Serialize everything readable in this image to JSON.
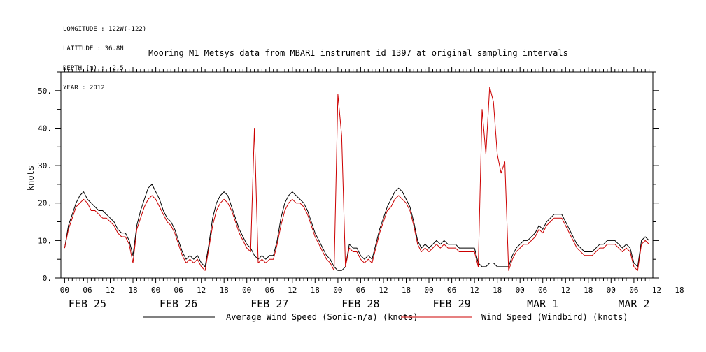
{
  "meta": {
    "longitude": "LONGITUDE : 122W(-122)",
    "latitude": "LATITUDE : 36.8N",
    "depth": "DEPTH (m) : -2.5",
    "year": "YEAR : 2012"
  },
  "chart_data": {
    "type": "line",
    "title": "Mooring M1 Metsys data from MBARI instrument id 1397 at original sampling intervals",
    "ylabel": "knots",
    "xlabel": "",
    "xlim_hours": [
      -1,
      155
    ],
    "ylim": [
      0,
      55
    ],
    "y_ticks": [
      0,
      10,
      20,
      30,
      40,
      50
    ],
    "y_tick_labels": [
      "0.",
      "10.",
      "20.",
      "30.",
      "40.",
      "50."
    ],
    "x_tick_labels": [
      "00",
      "06",
      "12",
      "18",
      "00",
      "06",
      "12",
      "18",
      "00",
      "06",
      "12",
      "18",
      "00",
      "06",
      "12",
      "18",
      "00",
      "06",
      "12",
      "18",
      "00",
      "06",
      "12",
      "18",
      "00",
      "06",
      "12",
      "18"
    ],
    "day_labels": [
      "FEB 25",
      "FEB 26",
      "FEB 27",
      "FEB 28",
      "FEB 29",
      "MAR  1",
      "MAR  2"
    ],
    "grid": false,
    "legend_position": "bottom",
    "colors": {
      "avg": "#000000",
      "windbird": "#cc0000",
      "axes": "#000000"
    },
    "series": [
      {
        "name": "Average Wind Speed (Sonic-n/a) (knots)",
        "color": "#000000",
        "x": [
          0,
          1,
          2,
          3,
          4,
          5,
          6,
          7,
          8,
          9,
          10,
          11,
          12,
          13,
          14,
          15,
          16,
          17,
          18,
          19,
          20,
          21,
          22,
          23,
          24,
          25,
          26,
          27,
          28,
          29,
          30,
          31,
          32,
          33,
          34,
          35,
          36,
          37,
          38,
          39,
          40,
          41,
          42,
          43,
          44,
          45,
          46,
          47,
          48,
          49,
          50,
          51,
          52,
          53,
          54,
          55,
          56,
          57,
          58,
          59,
          60,
          61,
          62,
          63,
          64,
          65,
          66,
          67,
          68,
          69,
          70,
          71,
          72,
          73,
          74,
          75,
          76,
          77,
          78,
          79,
          80,
          81,
          82,
          83,
          84,
          85,
          86,
          87,
          88,
          89,
          90,
          91,
          92,
          93,
          94,
          95,
          96,
          97,
          98,
          99,
          100,
          101,
          102,
          103,
          104,
          105,
          106,
          107,
          108,
          109,
          110,
          111,
          112,
          113,
          114,
          115,
          116,
          117,
          118,
          119,
          120,
          121,
          122,
          123,
          124,
          125,
          126,
          127,
          128,
          129,
          130,
          131,
          132,
          133,
          134,
          135,
          136,
          137,
          138,
          139,
          140,
          141,
          142,
          143,
          144,
          145,
          146,
          147,
          148,
          149,
          150,
          151,
          152,
          153,
          154
        ],
        "y": [
          8,
          14,
          17,
          20,
          22,
          23,
          21,
          20,
          19,
          18,
          18,
          17,
          16,
          15,
          13,
          12,
          12,
          10,
          6,
          14,
          18,
          21,
          24,
          25,
          23,
          21,
          18,
          16,
          15,
          13,
          10,
          7,
          5,
          6,
          5,
          6,
          4,
          3,
          9,
          16,
          20,
          22,
          23,
          22,
          19,
          16,
          13,
          11,
          9,
          8,
          6,
          5,
          6,
          5,
          6,
          6,
          10,
          16,
          20,
          22,
          23,
          22,
          21,
          20,
          18,
          15,
          12,
          10,
          8,
          6,
          5,
          3,
          2,
          2,
          3,
          9,
          8,
          8,
          6,
          5,
          6,
          5,
          9,
          13,
          16,
          19,
          21,
          23,
          24,
          23,
          21,
          19,
          15,
          10,
          8,
          9,
          8,
          9,
          10,
          9,
          10,
          9,
          9,
          9,
          8,
          8,
          8,
          8,
          8,
          4,
          3,
          3,
          4,
          4,
          3,
          3,
          3,
          3,
          6,
          8,
          9,
          10,
          10,
          11,
          12,
          14,
          13,
          15,
          16,
          17,
          17,
          17,
          15,
          13,
          11,
          9,
          8,
          7,
          7,
          7,
          8,
          9,
          9,
          10,
          10,
          10,
          9,
          8,
          9,
          8,
          4,
          3,
          10,
          11,
          10
        ]
      },
      {
        "name": "Wind Speed (Windbird) (knots)",
        "color": "#cc0000",
        "x": [
          0,
          1,
          2,
          3,
          4,
          5,
          6,
          7,
          8,
          9,
          10,
          11,
          12,
          13,
          14,
          15,
          16,
          17,
          18,
          19,
          20,
          21,
          22,
          23,
          24,
          25,
          26,
          27,
          28,
          29,
          30,
          31,
          32,
          33,
          34,
          35,
          36,
          37,
          38,
          39,
          40,
          41,
          42,
          43,
          44,
          45,
          46,
          47,
          48,
          49,
          50,
          51,
          52,
          53,
          54,
          55,
          56,
          57,
          58,
          59,
          60,
          61,
          62,
          63,
          64,
          65,
          66,
          67,
          68,
          69,
          70,
          71,
          72,
          73,
          74,
          75,
          76,
          77,
          78,
          79,
          80,
          81,
          82,
          83,
          84,
          85,
          86,
          87,
          88,
          89,
          90,
          91,
          92,
          93,
          94,
          95,
          96,
          97,
          98,
          99,
          100,
          101,
          102,
          103,
          104,
          105,
          106,
          107,
          108,
          109,
          110,
          111,
          112,
          113,
          114,
          115,
          116,
          117,
          118,
          119,
          120,
          121,
          122,
          123,
          124,
          125,
          126,
          127,
          128,
          129,
          130,
          131,
          132,
          133,
          134,
          135,
          136,
          137,
          138,
          139,
          140,
          141,
          142,
          143,
          144,
          145,
          146,
          147,
          148,
          149,
          150,
          151,
          152,
          153,
          154
        ],
        "y": [
          8,
          13,
          16,
          19,
          20,
          21,
          20,
          18,
          18,
          17,
          16,
          16,
          15,
          14,
          12,
          11,
          11,
          9,
          4,
          13,
          16,
          19,
          21,
          22,
          21,
          19,
          17,
          15,
          14,
          12,
          9,
          6,
          4,
          5,
          4,
          5,
          3,
          2,
          8,
          14,
          18,
          20,
          21,
          20,
          18,
          15,
          12,
          10,
          8,
          7,
          40,
          4,
          5,
          4,
          5,
          5,
          9,
          14,
          18,
          20,
          21,
          20,
          20,
          19,
          17,
          14,
          11,
          9,
          7,
          5,
          4,
          2,
          49,
          38,
          3,
          8,
          7,
          7,
          5,
          4,
          5,
          4,
          8,
          12,
          15,
          18,
          19,
          21,
          22,
          21,
          20,
          18,
          14,
          9,
          7,
          8,
          7,
          8,
          9,
          8,
          9,
          8,
          8,
          8,
          7,
          7,
          7,
          7,
          7,
          3,
          45,
          33,
          51,
          47,
          33,
          28,
          31,
          2,
          5,
          7,
          8,
          9,
          9,
          10,
          11,
          13,
          12,
          14,
          15,
          16,
          16,
          16,
          14,
          12,
          10,
          8,
          7,
          6,
          6,
          6,
          7,
          8,
          8,
          9,
          9,
          9,
          8,
          7,
          8,
          7,
          3,
          2,
          9,
          10,
          9
        ]
      }
    ]
  },
  "legend": {
    "avg_label": "Average Wind Speed (Sonic-n/a) (knots)",
    "windbird_label": "Wind Speed (Windbird) (knots)"
  }
}
